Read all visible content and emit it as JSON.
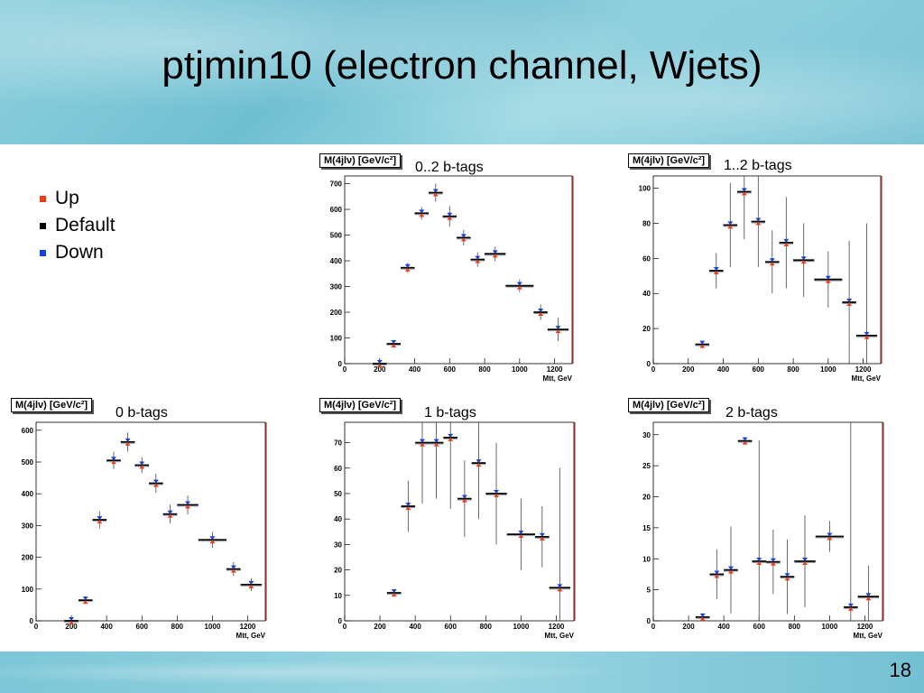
{
  "slide": {
    "title": "ptjmin10 (electron channel, Wjets)",
    "page_number": "18"
  },
  "legend": [
    {
      "label": "Up",
      "color": "#e8401c"
    },
    {
      "label": "Default",
      "color": "#000000"
    },
    {
      "label": "Down",
      "color": "#1a3fd6"
    }
  ],
  "chart_data": [
    {
      "type": "scatter",
      "title": "0..2 b-tags",
      "ylabel": "M(4jlν) [GeV/c²]",
      "xlabel": "Mtt, GeV",
      "xlim": [
        0,
        1300
      ],
      "ylim": [
        0,
        730
      ],
      "xticks": [
        0,
        200,
        400,
        600,
        800,
        1000,
        1200
      ],
      "yticks": [
        0,
        100,
        200,
        300,
        400,
        500,
        600,
        700
      ],
      "bins": [
        {
          "lo": 160,
          "hi": 240,
          "default": 0,
          "err": 0
        },
        {
          "lo": 240,
          "hi": 320,
          "default": 77,
          "err": 9
        },
        {
          "lo": 320,
          "hi": 400,
          "default": 373,
          "err": 19
        },
        {
          "lo": 400,
          "hi": 480,
          "default": 585,
          "err": 24
        },
        {
          "lo": 480,
          "hi": 560,
          "default": 665,
          "err": 35
        },
        {
          "lo": 560,
          "hi": 640,
          "default": 573,
          "err": 40
        },
        {
          "lo": 640,
          "hi": 720,
          "default": 490,
          "err": 30
        },
        {
          "lo": 720,
          "hi": 800,
          "default": 405,
          "err": 28
        },
        {
          "lo": 800,
          "hi": 920,
          "default": 427,
          "err": 28
        },
        {
          "lo": 920,
          "hi": 1080,
          "default": 303,
          "err": 25
        },
        {
          "lo": 1080,
          "hi": 1160,
          "default": 200,
          "err": 30
        },
        {
          "lo": 1160,
          "hi": 1280,
          "default": 133,
          "err": 45
        }
      ]
    },
    {
      "type": "scatter",
      "title": "1..2 b-tags",
      "ylabel": "M(4jlν) [GeV/c²]",
      "xlabel": "Mtt, GeV",
      "xlim": [
        0,
        1300
      ],
      "ylim": [
        0,
        107
      ],
      "xticks": [
        0,
        200,
        400,
        600,
        800,
        1000,
        1200
      ],
      "yticks": [
        0,
        20,
        40,
        60,
        80,
        100
      ],
      "bins": [
        {
          "lo": 240,
          "hi": 320,
          "default": 11,
          "err": 0
        },
        {
          "lo": 320,
          "hi": 400,
          "default": 53,
          "err": 10
        },
        {
          "lo": 400,
          "hi": 480,
          "default": 79,
          "err": 24
        },
        {
          "lo": 480,
          "hi": 560,
          "default": 98,
          "err": 27
        },
        {
          "lo": 560,
          "hi": 640,
          "default": 81,
          "err": 26
        },
        {
          "lo": 640,
          "hi": 720,
          "default": 58,
          "err": 18
        },
        {
          "lo": 720,
          "hi": 800,
          "default": 69,
          "err": 26
        },
        {
          "lo": 800,
          "hi": 920,
          "default": 59,
          "err": 21
        },
        {
          "lo": 920,
          "hi": 1080,
          "default": 48,
          "err": 16
        },
        {
          "lo": 1080,
          "hi": 1160,
          "default": 35,
          "err": 35
        },
        {
          "lo": 1160,
          "hi": 1280,
          "default": 16,
          "err": 64
        }
      ]
    },
    {
      "type": "scatter",
      "title": "0 b-tags",
      "ylabel": "M(4jlν) [GeV/c²]",
      "xlabel": "Mtt, GeV",
      "xlim": [
        0,
        1300
      ],
      "ylim": [
        0,
        625
      ],
      "xticks": [
        0,
        200,
        400,
        600,
        800,
        1000,
        1200
      ],
      "yticks": [
        0,
        100,
        200,
        300,
        400,
        500,
        600
      ],
      "bins": [
        {
          "lo": 160,
          "hi": 240,
          "default": 0,
          "err": 0
        },
        {
          "lo": 240,
          "hi": 320,
          "default": 65,
          "err": 6
        },
        {
          "lo": 320,
          "hi": 400,
          "default": 318,
          "err": 27
        },
        {
          "lo": 400,
          "hi": 480,
          "default": 505,
          "err": 27
        },
        {
          "lo": 480,
          "hi": 560,
          "default": 563,
          "err": 30
        },
        {
          "lo": 560,
          "hi": 640,
          "default": 490,
          "err": 25
        },
        {
          "lo": 640,
          "hi": 720,
          "default": 433,
          "err": 30
        },
        {
          "lo": 720,
          "hi": 800,
          "default": 336,
          "err": 30
        },
        {
          "lo": 800,
          "hi": 920,
          "default": 365,
          "err": 30
        },
        {
          "lo": 920,
          "hi": 1080,
          "default": 255,
          "err": 25
        },
        {
          "lo": 1080,
          "hi": 1160,
          "default": 163,
          "err": 22
        },
        {
          "lo": 1160,
          "hi": 1280,
          "default": 114,
          "err": 20
        }
      ]
    },
    {
      "type": "scatter",
      "title": "1 b-tags",
      "ylabel": "M(4jlν) [GeV/c²]",
      "xlabel": "Mtt, GeV",
      "xlim": [
        0,
        1300
      ],
      "ylim": [
        0,
        78
      ],
      "xticks": [
        0,
        200,
        400,
        600,
        800,
        1000,
        1200
      ],
      "yticks": [
        0,
        10,
        20,
        30,
        40,
        50,
        60,
        70
      ],
      "bins": [
        {
          "lo": 240,
          "hi": 320,
          "default": 11,
          "err": 0
        },
        {
          "lo": 320,
          "hi": 400,
          "default": 45,
          "err": 10
        },
        {
          "lo": 400,
          "hi": 480,
          "default": 70,
          "err": 24
        },
        {
          "lo": 480,
          "hi": 560,
          "default": 70,
          "err": 22
        },
        {
          "lo": 560,
          "hi": 640,
          "default": 72,
          "err": 28
        },
        {
          "lo": 640,
          "hi": 720,
          "default": 48,
          "err": 15
        },
        {
          "lo": 720,
          "hi": 800,
          "default": 62,
          "err": 22
        },
        {
          "lo": 800,
          "hi": 920,
          "default": 50,
          "err": 20
        },
        {
          "lo": 920,
          "hi": 1080,
          "default": 34,
          "err": 14
        },
        {
          "lo": 1080,
          "hi": 1160,
          "default": 33,
          "err": 12
        },
        {
          "lo": 1160,
          "hi": 1280,
          "default": 13,
          "err": 47
        }
      ]
    },
    {
      "type": "scatter",
      "title": "2 b-tags",
      "ylabel": "M(4jlν) [GeV/c²]",
      "xlabel": "Mtt, GeV",
      "xlim": [
        0,
        1300
      ],
      "ylim": [
        0,
        32
      ],
      "xticks": [
        0,
        200,
        400,
        600,
        800,
        1000,
        1200
      ],
      "yticks": [
        0,
        5,
        10,
        15,
        20,
        25,
        30
      ],
      "bins": [
        {
          "lo": 240,
          "hi": 320,
          "default": 0.6,
          "err": 0
        },
        {
          "lo": 320,
          "hi": 400,
          "default": 7.5,
          "err": 4
        },
        {
          "lo": 400,
          "hi": 480,
          "default": 8.2,
          "err": 7
        },
        {
          "lo": 480,
          "hi": 560,
          "default": 29,
          "err": 0.6
        },
        {
          "lo": 560,
          "hi": 640,
          "default": 9.6,
          "err": 19.5
        },
        {
          "lo": 640,
          "hi": 720,
          "default": 9.5,
          "err": 5.2
        },
        {
          "lo": 720,
          "hi": 800,
          "default": 7.1,
          "err": 6
        },
        {
          "lo": 800,
          "hi": 920,
          "default": 9.6,
          "err": 7.4
        },
        {
          "lo": 920,
          "hi": 1080,
          "default": 13.6,
          "err": 2.5
        },
        {
          "lo": 1080,
          "hi": 1160,
          "default": 2.2,
          "err": 30
        },
        {
          "lo": 1160,
          "hi": 1280,
          "default": 3.9,
          "err": 5
        }
      ]
    }
  ]
}
